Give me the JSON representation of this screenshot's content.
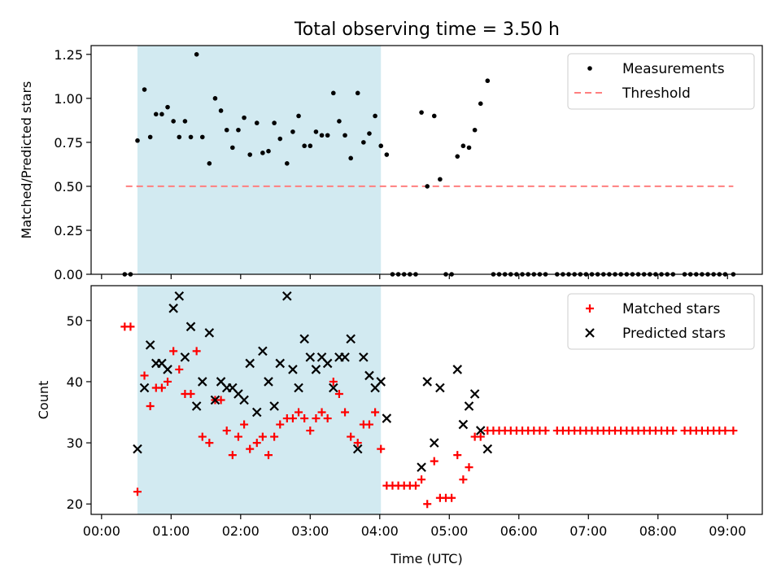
{
  "title": "Total observing time = 3.50 h",
  "colors": {
    "measurement": "#000000",
    "threshold": "#ff7f7f",
    "matched": "#ff0000",
    "predicted": "#000000",
    "span": "#add8e6"
  },
  "chart_data": [
    {
      "type": "scatter",
      "ylabel": "Matched/Predicted stars",
      "ylim": [
        0,
        1.3
      ],
      "yticks": [
        0,
        0.25,
        0.5,
        0.75,
        1.0,
        1.25
      ],
      "ytick_labels": [
        "0.00",
        "0.25",
        "0.50",
        "0.75",
        "1.00",
        "1.25"
      ],
      "xlim": [
        -0.15,
        9.5
      ],
      "shaded_span": [
        "00:31",
        "04:01"
      ],
      "legend": [
        "Measurements",
        "Threshold"
      ],
      "legend_position": "upper-right",
      "threshold": {
        "value": 0.5,
        "x_range": [
          "00:21",
          "09:05"
        ]
      },
      "series": [
        {
          "name": "Measurements",
          "marker": "dot",
          "points": [
            [
              "00:20",
              0
            ],
            [
              "00:25",
              0
            ],
            [
              "00:31",
              0.76
            ],
            [
              "00:37",
              1.05
            ],
            [
              "00:42",
              0.78
            ],
            [
              "00:47",
              0.91
            ],
            [
              "00:52",
              0.91
            ],
            [
              "00:57",
              0.95
            ],
            [
              "01:02",
              0.87
            ],
            [
              "01:07",
              0.78
            ],
            [
              "01:12",
              0.87
            ],
            [
              "01:17",
              0.78
            ],
            [
              "01:22",
              1.25
            ],
            [
              "01:27",
              0.78
            ],
            [
              "01:33",
              0.63
            ],
            [
              "01:38",
              1.0
            ],
            [
              "01:43",
              0.93
            ],
            [
              "01:48",
              0.82
            ],
            [
              "01:53",
              0.72
            ],
            [
              "01:58",
              0.82
            ],
            [
              "02:03",
              0.89
            ],
            [
              "02:08",
              0.68
            ],
            [
              "02:14",
              0.86
            ],
            [
              "02:19",
              0.69
            ],
            [
              "02:24",
              0.7
            ],
            [
              "02:29",
              0.86
            ],
            [
              "02:34",
              0.77
            ],
            [
              "02:40",
              0.63
            ],
            [
              "02:45",
              0.81
            ],
            [
              "02:50",
              0.9
            ],
            [
              "02:55",
              0.73
            ],
            [
              "03:00",
              0.73
            ],
            [
              "03:05",
              0.81
            ],
            [
              "03:10",
              0.79
            ],
            [
              "03:15",
              0.79
            ],
            [
              "03:20",
              1.03
            ],
            [
              "03:25",
              0.87
            ],
            [
              "03:30",
              0.79
            ],
            [
              "03:35",
              0.66
            ],
            [
              "03:41",
              1.03
            ],
            [
              "03:46",
              0.75
            ],
            [
              "03:51",
              0.8
            ],
            [
              "03:56",
              0.9
            ],
            [
              "04:01",
              0.73
            ],
            [
              "04:06",
              0.68
            ],
            [
              "04:11",
              0
            ],
            [
              "04:16",
              0
            ],
            [
              "04:21",
              0
            ],
            [
              "04:26",
              0
            ],
            [
              "04:31",
              0
            ],
            [
              "04:36",
              0.92
            ],
            [
              "04:41",
              0.5
            ],
            [
              "04:47",
              0.9
            ],
            [
              "04:52",
              0.54
            ],
            [
              "04:57",
              0
            ],
            [
              "05:02",
              0
            ],
            [
              "05:07",
              0.67
            ],
            [
              "05:12",
              0.73
            ],
            [
              "05:17",
              0.72
            ],
            [
              "05:22",
              0.82
            ],
            [
              "05:27",
              0.97
            ],
            [
              "05:33",
              1.1
            ],
            [
              "05:38",
              0
            ],
            [
              "05:43",
              0
            ],
            [
              "05:48",
              0
            ],
            [
              "05:53",
              0
            ],
            [
              "05:58",
              0
            ],
            [
              "06:03",
              0
            ],
            [
              "06:08",
              0
            ],
            [
              "06:13",
              0
            ],
            [
              "06:18",
              0
            ],
            [
              "06:23",
              0
            ],
            [
              "06:33",
              0
            ],
            [
              "06:38",
              0
            ],
            [
              "06:43",
              0
            ],
            [
              "06:48",
              0
            ],
            [
              "06:53",
              0
            ],
            [
              "06:58",
              0
            ],
            [
              "07:03",
              0
            ],
            [
              "07:08",
              0
            ],
            [
              "07:13",
              0
            ],
            [
              "07:18",
              0
            ],
            [
              "07:23",
              0
            ],
            [
              "07:28",
              0
            ],
            [
              "07:33",
              0
            ],
            [
              "07:38",
              0
            ],
            [
              "07:43",
              0
            ],
            [
              "07:48",
              0
            ],
            [
              "07:53",
              0
            ],
            [
              "07:58",
              0
            ],
            [
              "08:03",
              0
            ],
            [
              "08:08",
              0
            ],
            [
              "08:13",
              0
            ],
            [
              "08:23",
              0
            ],
            [
              "08:28",
              0
            ],
            [
              "08:33",
              0
            ],
            [
              "08:38",
              0
            ],
            [
              "08:43",
              0
            ],
            [
              "08:48",
              0
            ],
            [
              "08:53",
              0
            ],
            [
              "08:58",
              0
            ],
            [
              "09:05",
              0
            ]
          ]
        }
      ]
    },
    {
      "type": "scatter",
      "xlabel": "Time (UTC)",
      "ylabel": "Count",
      "ylim": [
        18.3,
        55.7
      ],
      "yticks": [
        20,
        30,
        40,
        50
      ],
      "ytick_labels": [
        "20",
        "30",
        "40",
        "50"
      ],
      "xlim": [
        -0.15,
        9.5
      ],
      "xticks": [
        "00:00",
        "01:00",
        "02:00",
        "03:00",
        "04:00",
        "05:00",
        "06:00",
        "07:00",
        "08:00",
        "09:00"
      ],
      "shaded_span": [
        "00:31",
        "04:01"
      ],
      "legend": [
        "Matched stars",
        "Predicted stars"
      ],
      "legend_position": "upper-right",
      "series": [
        {
          "name": "Matched stars",
          "marker": "plus",
          "points": [
            [
              "00:20",
              49
            ],
            [
              "00:25",
              49
            ],
            [
              "00:31",
              22
            ],
            [
              "00:37",
              41
            ],
            [
              "00:42",
              36
            ],
            [
              "00:47",
              39
            ],
            [
              "00:52",
              39
            ],
            [
              "00:57",
              40
            ],
            [
              "01:02",
              45
            ],
            [
              "01:07",
              42
            ],
            [
              "01:12",
              38
            ],
            [
              "01:17",
              38
            ],
            [
              "01:22",
              45
            ],
            [
              "01:27",
              31
            ],
            [
              "01:33",
              30
            ],
            [
              "01:38",
              37
            ],
            [
              "01:43",
              37
            ],
            [
              "01:48",
              32
            ],
            [
              "01:53",
              28
            ],
            [
              "01:58",
              31
            ],
            [
              "02:03",
              33
            ],
            [
              "02:08",
              29
            ],
            [
              "02:14",
              30
            ],
            [
              "02:19",
              31
            ],
            [
              "02:24",
              28
            ],
            [
              "02:29",
              31
            ],
            [
              "02:34",
              33
            ],
            [
              "02:40",
              34
            ],
            [
              "02:45",
              34
            ],
            [
              "02:50",
              35
            ],
            [
              "02:55",
              34
            ],
            [
              "03:00",
              32
            ],
            [
              "03:05",
              34
            ],
            [
              "03:10",
              35
            ],
            [
              "03:15",
              34
            ],
            [
              "03:20",
              40
            ],
            [
              "03:25",
              38
            ],
            [
              "03:30",
              35
            ],
            [
              "03:35",
              31
            ],
            [
              "03:41",
              30
            ],
            [
              "03:46",
              33
            ],
            [
              "03:51",
              33
            ],
            [
              "03:56",
              35
            ],
            [
              "04:01",
              29
            ],
            [
              "04:06",
              23
            ],
            [
              "04:11",
              23
            ],
            [
              "04:16",
              23
            ],
            [
              "04:21",
              23
            ],
            [
              "04:26",
              23
            ],
            [
              "04:31",
              23
            ],
            [
              "04:36",
              24
            ],
            [
              "04:41",
              20
            ],
            [
              "04:47",
              27
            ],
            [
              "04:52",
              21
            ],
            [
              "04:57",
              21
            ],
            [
              "05:02",
              21
            ],
            [
              "05:07",
              28
            ],
            [
              "05:12",
              24
            ],
            [
              "05:17",
              26
            ],
            [
              "05:22",
              31
            ],
            [
              "05:27",
              31
            ],
            [
              "05:33",
              32
            ],
            [
              "05:38",
              32
            ],
            [
              "05:43",
              32
            ],
            [
              "05:48",
              32
            ],
            [
              "05:53",
              32
            ],
            [
              "05:58",
              32
            ],
            [
              "06:03",
              32
            ],
            [
              "06:08",
              32
            ],
            [
              "06:13",
              32
            ],
            [
              "06:18",
              32
            ],
            [
              "06:23",
              32
            ],
            [
              "06:33",
              32
            ],
            [
              "06:38",
              32
            ],
            [
              "06:43",
              32
            ],
            [
              "06:48",
              32
            ],
            [
              "06:53",
              32
            ],
            [
              "06:58",
              32
            ],
            [
              "07:03",
              32
            ],
            [
              "07:08",
              32
            ],
            [
              "07:13",
              32
            ],
            [
              "07:18",
              32
            ],
            [
              "07:23",
              32
            ],
            [
              "07:28",
              32
            ],
            [
              "07:33",
              32
            ],
            [
              "07:38",
              32
            ],
            [
              "07:43",
              32
            ],
            [
              "07:48",
              32
            ],
            [
              "07:53",
              32
            ],
            [
              "07:58",
              32
            ],
            [
              "08:03",
              32
            ],
            [
              "08:08",
              32
            ],
            [
              "08:13",
              32
            ],
            [
              "08:23",
              32
            ],
            [
              "08:28",
              32
            ],
            [
              "08:33",
              32
            ],
            [
              "08:38",
              32
            ],
            [
              "08:43",
              32
            ],
            [
              "08:48",
              32
            ],
            [
              "08:53",
              32
            ],
            [
              "08:58",
              32
            ],
            [
              "09:05",
              32
            ]
          ]
        },
        {
          "name": "Predicted stars",
          "marker": "x",
          "points": [
            [
              "00:31",
              29
            ],
            [
              "00:37",
              39
            ],
            [
              "00:42",
              46
            ],
            [
              "00:47",
              43
            ],
            [
              "00:52",
              43
            ],
            [
              "00:57",
              42
            ],
            [
              "01:02",
              52
            ],
            [
              "01:07",
              54
            ],
            [
              "01:12",
              44
            ],
            [
              "01:17",
              49
            ],
            [
              "01:22",
              36
            ],
            [
              "01:27",
              40
            ],
            [
              "01:33",
              48
            ],
            [
              "01:38",
              37
            ],
            [
              "01:43",
              40
            ],
            [
              "01:48",
              39
            ],
            [
              "01:53",
              39
            ],
            [
              "01:58",
              38
            ],
            [
              "02:03",
              37
            ],
            [
              "02:08",
              43
            ],
            [
              "02:14",
              35
            ],
            [
              "02:19",
              45
            ],
            [
              "02:24",
              40
            ],
            [
              "02:29",
              36
            ],
            [
              "02:34",
              43
            ],
            [
              "02:40",
              54
            ],
            [
              "02:45",
              42
            ],
            [
              "02:50",
              39
            ],
            [
              "02:55",
              47
            ],
            [
              "03:00",
              44
            ],
            [
              "03:05",
              42
            ],
            [
              "03:10",
              44
            ],
            [
              "03:15",
              43
            ],
            [
              "03:20",
              39
            ],
            [
              "03:25",
              44
            ],
            [
              "03:30",
              44
            ],
            [
              "03:35",
              47
            ],
            [
              "03:41",
              29
            ],
            [
              "03:46",
              44
            ],
            [
              "03:51",
              41
            ],
            [
              "03:56",
              39
            ],
            [
              "04:01",
              40
            ],
            [
              "04:06",
              34
            ],
            [
              "04:36",
              26
            ],
            [
              "04:41",
              40
            ],
            [
              "04:47",
              30
            ],
            [
              "04:52",
              39
            ],
            [
              "05:07",
              42
            ],
            [
              "05:12",
              33
            ],
            [
              "05:17",
              36
            ],
            [
              "05:22",
              38
            ],
            [
              "05:27",
              32
            ],
            [
              "05:33",
              29
            ]
          ]
        }
      ]
    }
  ]
}
